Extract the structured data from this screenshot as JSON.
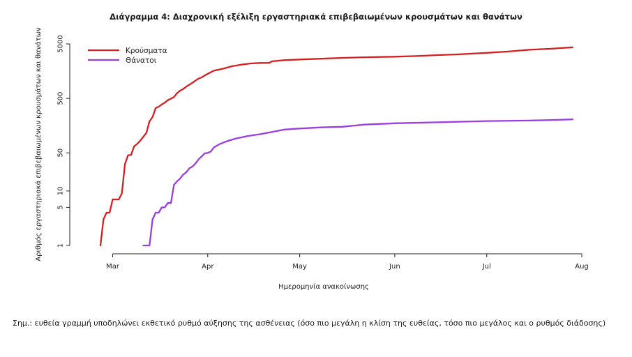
{
  "chart_data": {
    "type": "line",
    "title": "Διάγραμμα 4: Διαχρονική εξέλιξη εργαστηριακά επιβεβαιωμένων κρουσμάτων και θανάτων",
    "xlabel": "Ημερομηνία ανακοίνωσης",
    "ylabel": "Αριθμός εργαστηριακά επιβεβαιωμένων κρουσμάτων και θανάτων",
    "y_scale": "log",
    "ylim": [
      1,
      5000
    ],
    "xlim": [
      "2020-02-16",
      "2020-08-01"
    ],
    "y_ticks": [
      1,
      5,
      10,
      50,
      500,
      5000
    ],
    "x_ticks": [
      {
        "date": "2020-03-01",
        "label": "Mar"
      },
      {
        "date": "2020-04-01",
        "label": "Apr"
      },
      {
        "date": "2020-05-01",
        "label": "May"
      },
      {
        "date": "2020-06-01",
        "label": "Jun"
      },
      {
        "date": "2020-07-01",
        "label": "Jul"
      },
      {
        "date": "2020-08-01",
        "label": "Aug"
      }
    ],
    "legend_position": "top-left",
    "grid": false,
    "series": [
      {
        "name": "Κρούσματα",
        "color": "#d42020",
        "points": [
          [
            "2020-02-26",
            1
          ],
          [
            "2020-02-27",
            3
          ],
          [
            "2020-02-28",
            4
          ],
          [
            "2020-02-29",
            4
          ],
          [
            "2020-03-01",
            7
          ],
          [
            "2020-03-02",
            7
          ],
          [
            "2020-03-03",
            7
          ],
          [
            "2020-03-04",
            9
          ],
          [
            "2020-03-05",
            31
          ],
          [
            "2020-03-06",
            45
          ],
          [
            "2020-03-07",
            46
          ],
          [
            "2020-03-08",
            66
          ],
          [
            "2020-03-09",
            73
          ],
          [
            "2020-03-10",
            84
          ],
          [
            "2020-03-11",
            99
          ],
          [
            "2020-03-12",
            117
          ],
          [
            "2020-03-13",
            190
          ],
          [
            "2020-03-14",
            228
          ],
          [
            "2020-03-15",
            331
          ],
          [
            "2020-03-16",
            352
          ],
          [
            "2020-03-17",
            387
          ],
          [
            "2020-03-18",
            418
          ],
          [
            "2020-03-19",
            464
          ],
          [
            "2020-03-20",
            495
          ],
          [
            "2020-03-21",
            530
          ],
          [
            "2020-03-22",
            624
          ],
          [
            "2020-03-23",
            695
          ],
          [
            "2020-03-24",
            743
          ],
          [
            "2020-03-25",
            821
          ],
          [
            "2020-03-26",
            892
          ],
          [
            "2020-03-27",
            966
          ],
          [
            "2020-03-28",
            1061
          ],
          [
            "2020-03-29",
            1156
          ],
          [
            "2020-03-30",
            1212
          ],
          [
            "2020-03-31",
            1314
          ],
          [
            "2020-04-01",
            1415
          ],
          [
            "2020-04-03",
            1613
          ],
          [
            "2020-04-06",
            1755
          ],
          [
            "2020-04-09",
            1955
          ],
          [
            "2020-04-12",
            2081
          ],
          [
            "2020-04-15",
            2192
          ],
          [
            "2020-04-18",
            2235
          ],
          [
            "2020-04-21",
            2245
          ],
          [
            "2020-04-22",
            2401
          ],
          [
            "2020-04-26",
            2517
          ],
          [
            "2020-05-01",
            2591
          ],
          [
            "2020-05-08",
            2678
          ],
          [
            "2020-05-15",
            2770
          ],
          [
            "2020-05-22",
            2850
          ],
          [
            "2020-06-01",
            2917
          ],
          [
            "2020-06-08",
            2997
          ],
          [
            "2020-06-15",
            3121
          ],
          [
            "2020-06-22",
            3227
          ],
          [
            "2020-07-01",
            3432
          ],
          [
            "2020-07-08",
            3622
          ],
          [
            "2020-07-15",
            3910
          ],
          [
            "2020-07-22",
            4077
          ],
          [
            "2020-07-29",
            4337
          ]
        ]
      },
      {
        "name": "Θάνατοι",
        "color": "#9b3de0",
        "points": [
          [
            "2020-03-11",
            1
          ],
          [
            "2020-03-13",
            1
          ],
          [
            "2020-03-14",
            3
          ],
          [
            "2020-03-15",
            4
          ],
          [
            "2020-03-16",
            4
          ],
          [
            "2020-03-17",
            5
          ],
          [
            "2020-03-18",
            5
          ],
          [
            "2020-03-19",
            6
          ],
          [
            "2020-03-20",
            6
          ],
          [
            "2020-03-21",
            13
          ],
          [
            "2020-03-22",
            15
          ],
          [
            "2020-03-23",
            17
          ],
          [
            "2020-03-24",
            20
          ],
          [
            "2020-03-25",
            22
          ],
          [
            "2020-03-26",
            26
          ],
          [
            "2020-03-27",
            28
          ],
          [
            "2020-03-28",
            32
          ],
          [
            "2020-03-29",
            38
          ],
          [
            "2020-03-30",
            43
          ],
          [
            "2020-03-31",
            49
          ],
          [
            "2020-04-01",
            50
          ],
          [
            "2020-04-02",
            53
          ],
          [
            "2020-04-03",
            63
          ],
          [
            "2020-04-05",
            73
          ],
          [
            "2020-04-07",
            81
          ],
          [
            "2020-04-10",
            91
          ],
          [
            "2020-04-14",
            102
          ],
          [
            "2020-04-18",
            110
          ],
          [
            "2020-04-22",
            121
          ],
          [
            "2020-04-26",
            134
          ],
          [
            "2020-05-01",
            140
          ],
          [
            "2020-05-08",
            147
          ],
          [
            "2020-05-15",
            151
          ],
          [
            "2020-05-22",
            165
          ],
          [
            "2020-06-01",
            175
          ],
          [
            "2020-06-15",
            182
          ],
          [
            "2020-07-01",
            192
          ],
          [
            "2020-07-15",
            196
          ],
          [
            "2020-07-22",
            201
          ],
          [
            "2020-07-29",
            206
          ]
        ]
      }
    ]
  },
  "note": "Σημ.: ευθεία γραμμή υποδηλώνει εκθετικό ρυθμό αύξησης της ασθένειας (όσο πιο μεγάλη η κλίση της ευθείας, τόσο πιο μεγάλος και ο ρυθμός διάδοσης)"
}
